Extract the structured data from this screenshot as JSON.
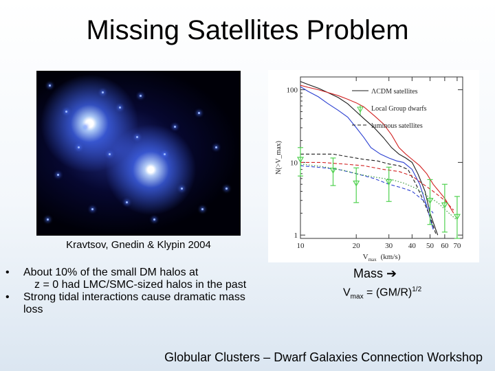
{
  "slide": {
    "title": "Missing Satellites Problem",
    "credit": "Kravtsov, Gnedin & Klypin 2004",
    "bullet1_line1": "About 10% of the small DM halos at",
    "bullet1_line2": "z = 0 had LMC/SMC-sized halos in the past",
    "bullet2": "Strong tidal interactions cause dramatic mass loss",
    "mass_label": "Mass",
    "arrow_icon": "right-arrow-icon",
    "vmax_prefix": "V",
    "vmax_sub": "max",
    "vmax_eq": " = (GM/R)",
    "vmax_sup": "1/2",
    "footer": "Globular Clusters – Dwarf Galaxies Connection Workshop"
  },
  "chart_data": {
    "type": "line",
    "xscale": "log",
    "yscale": "log",
    "xlim": [
      10,
      75
    ],
    "ylim": [
      0.9,
      150
    ],
    "xticks": [
      10,
      20,
      30,
      40,
      50,
      60,
      70
    ],
    "xtick_labels": [
      "10",
      "20",
      "30",
      "40",
      "50",
      "60",
      "70"
    ],
    "yticks": [
      1,
      10,
      100
    ],
    "ytick_labels": [
      "1",
      "10",
      "100"
    ],
    "xlabel_main": "V",
    "xlabel_sub": "max",
    "xlabel_tail": "(km/s)",
    "ylabel": "N(>V_max)",
    "legend": {
      "position": "top-right",
      "entries": [
        "ΛCDM satellites",
        "Local Group dwarfs",
        "luminous satellites"
      ]
    },
    "series": [
      {
        "name": "ΛCDM satellites",
        "style": "solid",
        "color": "#1a1a1a",
        "x": [
          10,
          11,
          12.5,
          14,
          16,
          18,
          20,
          22,
          25,
          28,
          31,
          34,
          37,
          40,
          43,
          47,
          50,
          55
        ],
        "y": [
          130,
          118,
          105,
          92,
          78,
          64,
          50,
          40,
          30,
          22,
          16,
          13,
          11.5,
          10,
          7,
          4,
          2,
          1
        ]
      },
      {
        "name": "",
        "style": "solid",
        "color": "#d12020",
        "x": [
          10,
          11,
          12.5,
          14,
          16,
          18,
          20,
          22,
          25,
          28,
          31,
          34,
          37,
          40,
          44,
          48,
          52,
          60,
          67
        ],
        "y": [
          115,
          108,
          100,
          92,
          83,
          74,
          66,
          58,
          44,
          34,
          24,
          16,
          13,
          11,
          9,
          7,
          5,
          3.2,
          2
        ]
      },
      {
        "name": "",
        "style": "solid",
        "color": "#2a3fd1",
        "x": [
          10,
          11,
          12.5,
          14,
          16,
          18,
          20,
          22,
          24,
          27,
          30,
          33,
          36,
          40,
          44,
          48,
          52
        ],
        "y": [
          110,
          95,
          80,
          65,
          52,
          42,
          30,
          22,
          16,
          13,
          11.5,
          10.5,
          10,
          8,
          5,
          2.5,
          1.2
        ]
      },
      {
        "name": "luminous satellites",
        "style": "dashed",
        "color": "#1a1a1a",
        "x": [
          10,
          12,
          15,
          18,
          22,
          26,
          30,
          34,
          38,
          42,
          46,
          50,
          54
        ],
        "y": [
          13,
          13,
          13,
          12,
          11,
          10.5,
          9.5,
          9,
          8,
          5,
          3,
          1.8,
          1
        ]
      },
      {
        "name": "",
        "style": "dashed",
        "color": "#d12020",
        "x": [
          10,
          13,
          17,
          22,
          28,
          34,
          40,
          46,
          52,
          60,
          67
        ],
        "y": [
          10,
          10,
          9.5,
          9,
          8,
          7.5,
          6.5,
          5,
          4,
          3,
          2.2
        ]
      },
      {
        "name": "",
        "style": "dashed",
        "color": "#2a3fd1",
        "x": [
          10,
          13,
          16,
          20,
          25,
          30,
          35,
          40,
          46,
          52
        ],
        "y": [
          9,
          8.5,
          8,
          7,
          6,
          5,
          4.5,
          4,
          3,
          2
        ]
      },
      {
        "name": "",
        "style": "dotted",
        "color": "#2a8f2a",
        "x": [
          10,
          13,
          17,
          21,
          26,
          31,
          36,
          42,
          48,
          55,
          62,
          70
        ],
        "y": [
          9.5,
          8.8,
          7.8,
          6.8,
          6.2,
          5.8,
          5.2,
          4.4,
          3.5,
          2.8,
          2.1,
          1.6
        ]
      }
    ],
    "local_group_dwarfs": {
      "name": "Local Group dwarfs",
      "color": "#4fd14f",
      "x": [
        10,
        15,
        20,
        30,
        50,
        60,
        70
      ],
      "y": [
        11,
        7.8,
        5.2,
        5.4,
        3.0,
        2.6,
        1.8
      ],
      "y_low": [
        6.5,
        4.8,
        2.8,
        2.9,
        1.4,
        1.1,
        0.9
      ],
      "y_high": [
        16,
        11.5,
        8.4,
        8.6,
        5.8,
        5.0,
        3.4
      ]
    }
  }
}
